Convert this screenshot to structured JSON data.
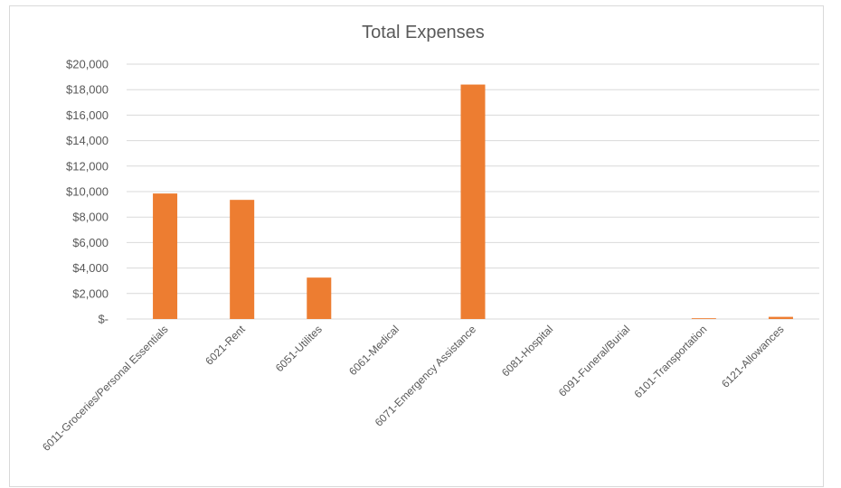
{
  "chart_data": {
    "type": "bar",
    "title": "Total Expenses",
    "xlabel": "",
    "ylabel": "",
    "ylim": [
      0,
      20000
    ],
    "grid": true,
    "legend": "none",
    "bar_color": "#ED7D31",
    "yticks": [
      0,
      2000,
      4000,
      6000,
      8000,
      10000,
      12000,
      14000,
      16000,
      18000,
      20000
    ],
    "ytick_labels": [
      "$-",
      "$2,000",
      "$4,000",
      "$6,000",
      "$8,000",
      "$10,000",
      "$12,000",
      "$14,000",
      "$16,000",
      "$18,000",
      "$20,000"
    ],
    "categories": [
      "6011-Groceries/Personal Essentials",
      "6021-Rent",
      "6051-Utilites",
      "6061-Medical",
      "6071-Emergency Assistance",
      "6081-Hospital",
      "6091-Funeral/Burial",
      "6101-Transportation",
      "6121-Allowances"
    ],
    "values": [
      9850,
      9350,
      3250,
      0,
      18400,
      0,
      0,
      60,
      170
    ]
  }
}
